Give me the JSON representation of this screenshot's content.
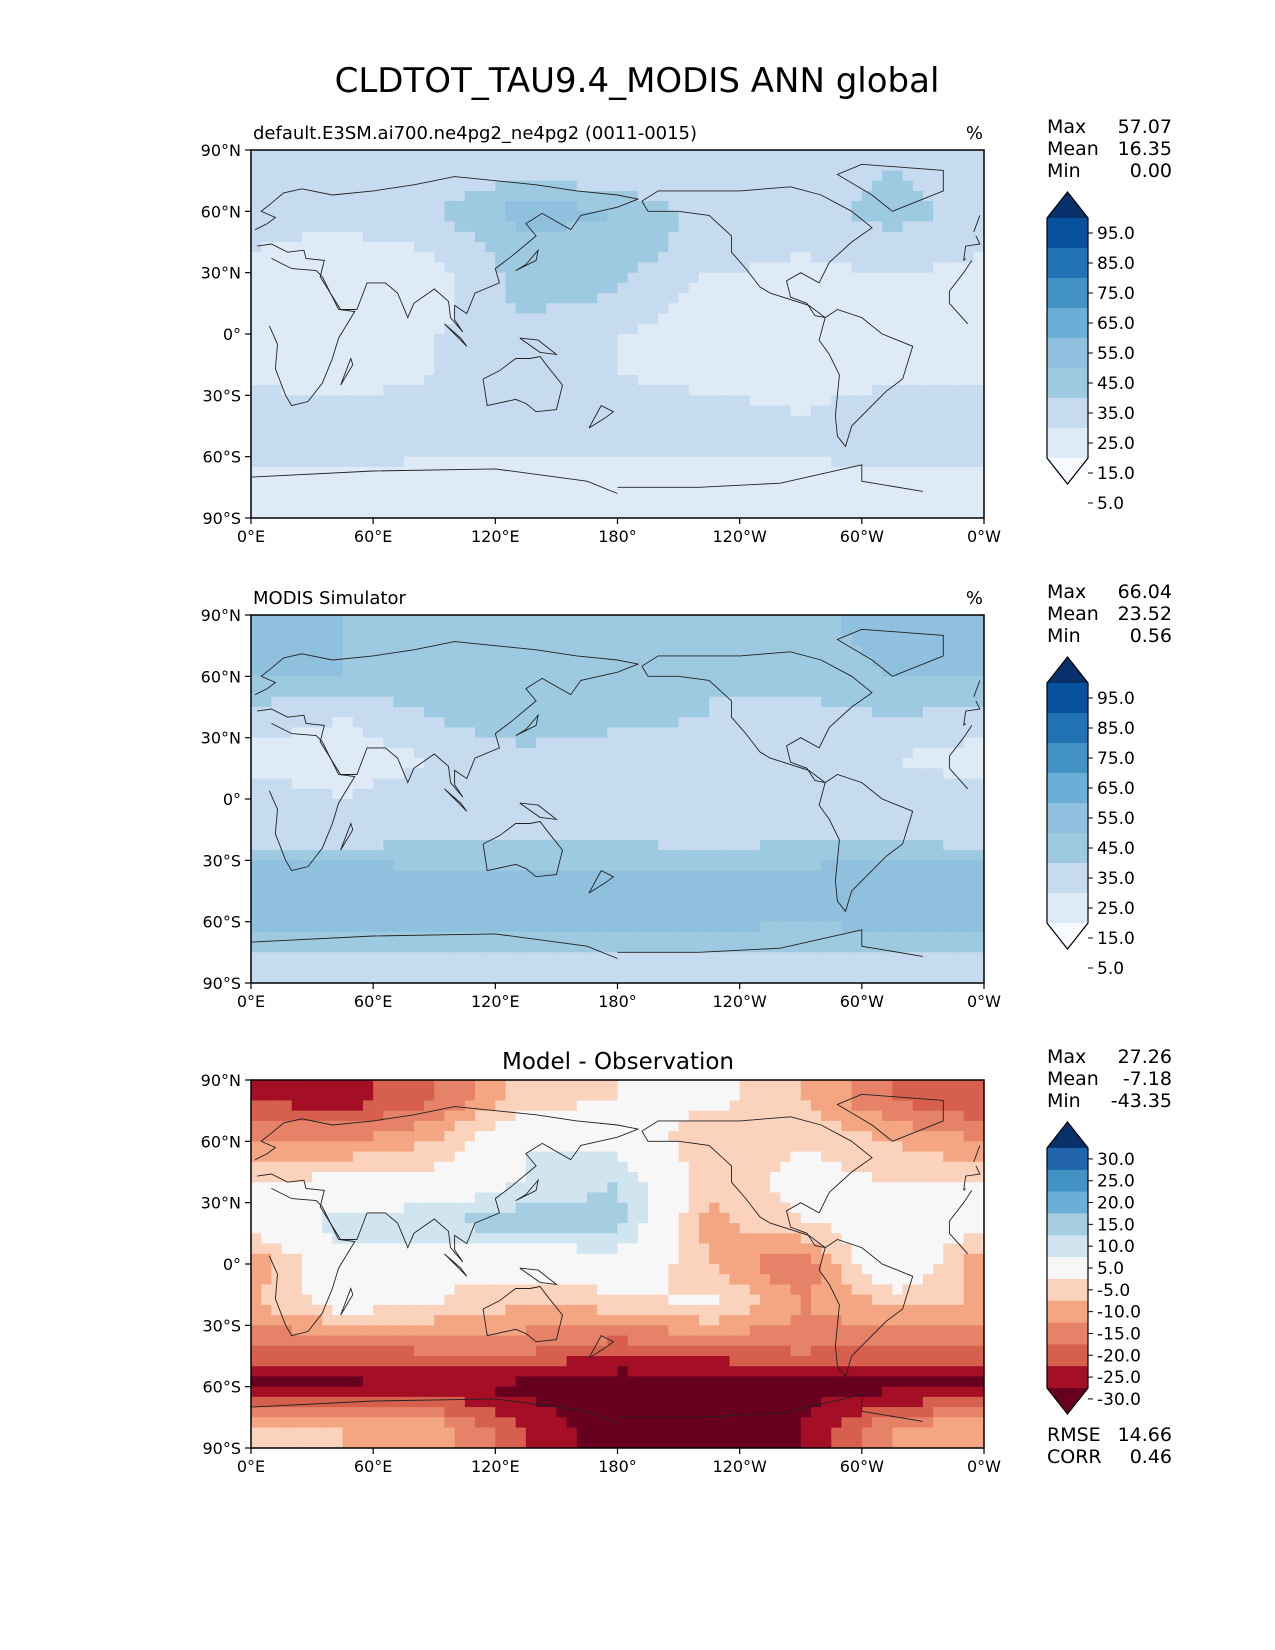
{
  "figure": {
    "title": "CLDTOT_TAU9.4_MODIS ANN global"
  },
  "colors": {
    "blues": [
      "#f7fbff",
      "#deebf7",
      "#c6dbef",
      "#9ecae1",
      "#8fc0de",
      "#6baed6",
      "#4292c6",
      "#2171b5",
      "#08519c",
      "#08306b"
    ],
    "diverging": [
      "#67001f",
      "#a50f26",
      "#d6604d",
      "#e58267",
      "#f4a582",
      "#fbd2bc",
      "#f7f7f7",
      "#d1e5f0",
      "#a6cee3",
      "#6baed6",
      "#4292c6",
      "#2166ac",
      "#08306b"
    ],
    "coast": "#222222"
  },
  "axes_ticks": {
    "lon": [
      "0°E",
      "60°E",
      "120°E",
      "180°",
      "120°W",
      "60°W",
      "0°W"
    ],
    "lat": [
      "90°N",
      "60°N",
      "30°N",
      "0°",
      "30°S",
      "60°S",
      "90°S"
    ]
  },
  "panels": [
    {
      "id": "test",
      "left_title": "default.E3SM.ai700.ne4pg2_ne4pg2 (0011-0015)",
      "center_title": "",
      "units": "%",
      "stats": [
        {
          "label": "Max",
          "value": "57.07"
        },
        {
          "label": "Mean",
          "value": "16.35"
        },
        {
          "label": "Min",
          "value": "0.00"
        }
      ],
      "colorbar_labels": [
        "95.0",
        "85.0",
        "75.0",
        "65.0",
        "55.0",
        "45.0",
        "35.0",
        "25.0",
        "15.0",
        "5.0"
      ],
      "palette": "blues",
      "extra_stats": []
    },
    {
      "id": "reference",
      "left_title": "MODIS Simulator",
      "center_title": "",
      "units": "%",
      "stats": [
        {
          "label": "Max",
          "value": "66.04"
        },
        {
          "label": "Mean",
          "value": "23.52"
        },
        {
          "label": "Min",
          "value": "0.56"
        }
      ],
      "colorbar_labels": [
        "95.0",
        "85.0",
        "75.0",
        "65.0",
        "55.0",
        "45.0",
        "35.0",
        "25.0",
        "15.0",
        "5.0"
      ],
      "palette": "blues",
      "extra_stats": []
    },
    {
      "id": "difference",
      "left_title": "",
      "center_title": "Model - Observation",
      "units": "",
      "stats": [
        {
          "label": "Max",
          "value": "27.26"
        },
        {
          "label": "Mean",
          "value": "-7.18"
        },
        {
          "label": "Min",
          "value": "-43.35"
        }
      ],
      "colorbar_labels": [
        "30.0",
        "25.0",
        "20.0",
        "15.0",
        "10.0",
        "5.0",
        "-5.0",
        "-10.0",
        "-15.0",
        "-20.0",
        "-25.0",
        "-30.0"
      ],
      "palette": "diverging",
      "extra_stats": [
        {
          "label": "RMSE",
          "value": "14.66"
        },
        {
          "label": "CORR",
          "value": "0.46"
        }
      ]
    }
  ],
  "chart_data": [
    {
      "type": "heatmap",
      "title": "default.E3SM.ai700.ne4pg2_ne4pg2 (0011-0015)",
      "projection": "PlateCarree, central longitude 180",
      "xlim": [
        0,
        360
      ],
      "ylim": [
        -90,
        90
      ],
      "units": "%",
      "levels": [
        0,
        5,
        15,
        25,
        35,
        45,
        55,
        65,
        75,
        85,
        95,
        100
      ],
      "summary": {
        "max": 57.07,
        "mean": 16.35,
        "min": 0.0
      },
      "value_grid": {
        "lat": [
          80,
          60,
          40,
          20,
          0,
          -20,
          -40,
          -60,
          -80
        ],
        "lon": [
          0,
          45,
          90,
          135,
          180,
          225,
          270,
          315
        ],
        "rows": [
          [
            15,
            15,
            15,
            20,
            15,
            15,
            20,
            25
          ],
          [
            20,
            20,
            25,
            40,
            35,
            20,
            20,
            30
          ],
          [
            15,
            10,
            15,
            30,
            30,
            20,
            15,
            20
          ],
          [
            10,
            5,
            10,
            30,
            25,
            10,
            10,
            10
          ],
          [
            15,
            10,
            15,
            20,
            15,
            10,
            10,
            10
          ],
          [
            10,
            10,
            15,
            15,
            15,
            10,
            10,
            10
          ],
          [
            25,
            20,
            20,
            20,
            25,
            20,
            15,
            25
          ],
          [
            20,
            20,
            15,
            15,
            15,
            15,
            15,
            20
          ],
          [
            5,
            5,
            5,
            5,
            5,
            5,
            5,
            5
          ]
        ]
      }
    },
    {
      "type": "heatmap",
      "title": "MODIS Simulator",
      "projection": "PlateCarree, central longitude 180",
      "xlim": [
        0,
        360
      ],
      "ylim": [
        -90,
        90
      ],
      "units": "%",
      "levels": [
        0,
        5,
        15,
        25,
        35,
        45,
        55,
        65,
        75,
        85,
        95,
        100
      ],
      "summary": {
        "max": 66.04,
        "mean": 23.52,
        "min": 0.56
      },
      "value_grid": {
        "lat": [
          80,
          60,
          40,
          20,
          0,
          -20,
          -40,
          -60,
          -80
        ],
        "lon": [
          0,
          45,
          90,
          135,
          180,
          225,
          270,
          315
        ],
        "rows": [
          [
            40,
            35,
            30,
            30,
            25,
            25,
            30,
            40
          ],
          [
            35,
            35,
            30,
            35,
            35,
            25,
            30,
            35
          ],
          [
            20,
            15,
            25,
            35,
            30,
            25,
            20,
            25
          ],
          [
            10,
            10,
            15,
            20,
            15,
            15,
            15,
            15
          ],
          [
            20,
            15,
            20,
            25,
            15,
            15,
            25,
            20
          ],
          [
            20,
            20,
            25,
            25,
            25,
            20,
            25,
            25
          ],
          [
            45,
            45,
            40,
            40,
            40,
            40,
            40,
            45
          ],
          [
            40,
            40,
            40,
            40,
            45,
            40,
            35,
            40
          ],
          [
            20,
            20,
            20,
            20,
            15,
            20,
            20,
            20
          ]
        ]
      }
    },
    {
      "type": "heatmap",
      "title": "Model - Observation",
      "projection": "PlateCarree, central longitude 180",
      "xlim": [
        0,
        360
      ],
      "ylim": [
        -90,
        90
      ],
      "levels": [
        -100,
        -30,
        -25,
        -20,
        -15,
        -10,
        -5,
        5,
        10,
        15,
        20,
        25,
        30,
        100
      ],
      "summary": {
        "max": 27.26,
        "mean": -7.18,
        "min": -43.35,
        "rmse": 14.66,
        "corr": 0.46
      },
      "value_grid": {
        "lat": [
          80,
          60,
          40,
          20,
          0,
          -20,
          -40,
          -60,
          -80
        ],
        "lon": [
          0,
          45,
          90,
          135,
          180,
          225,
          270,
          315
        ],
        "rows": [
          [
            -25,
            -28,
            -20,
            -8,
            -5,
            -3,
            -10,
            -20
          ],
          [
            -15,
            -15,
            -10,
            5,
            2,
            -10,
            -5,
            -10
          ],
          [
            -5,
            -3,
            -2,
            5,
            10,
            -8,
            -3,
            -5
          ],
          [
            -2,
            8,
            10,
            14,
            12,
            -12,
            -5,
            -2
          ],
          [
            -15,
            2,
            -3,
            -2,
            2,
            -10,
            -20,
            5
          ],
          [
            -10,
            -2,
            -5,
            -10,
            -8,
            -3,
            -15,
            -10
          ],
          [
            -20,
            -20,
            -18,
            -18,
            -22,
            -20,
            -18,
            -20
          ],
          [
            -32,
            -32,
            -30,
            -32,
            -35,
            -35,
            -32,
            -32
          ],
          [
            -10,
            -10,
            -12,
            -25,
            -35,
            -35,
            -30,
            -15
          ]
        ]
      }
    }
  ]
}
